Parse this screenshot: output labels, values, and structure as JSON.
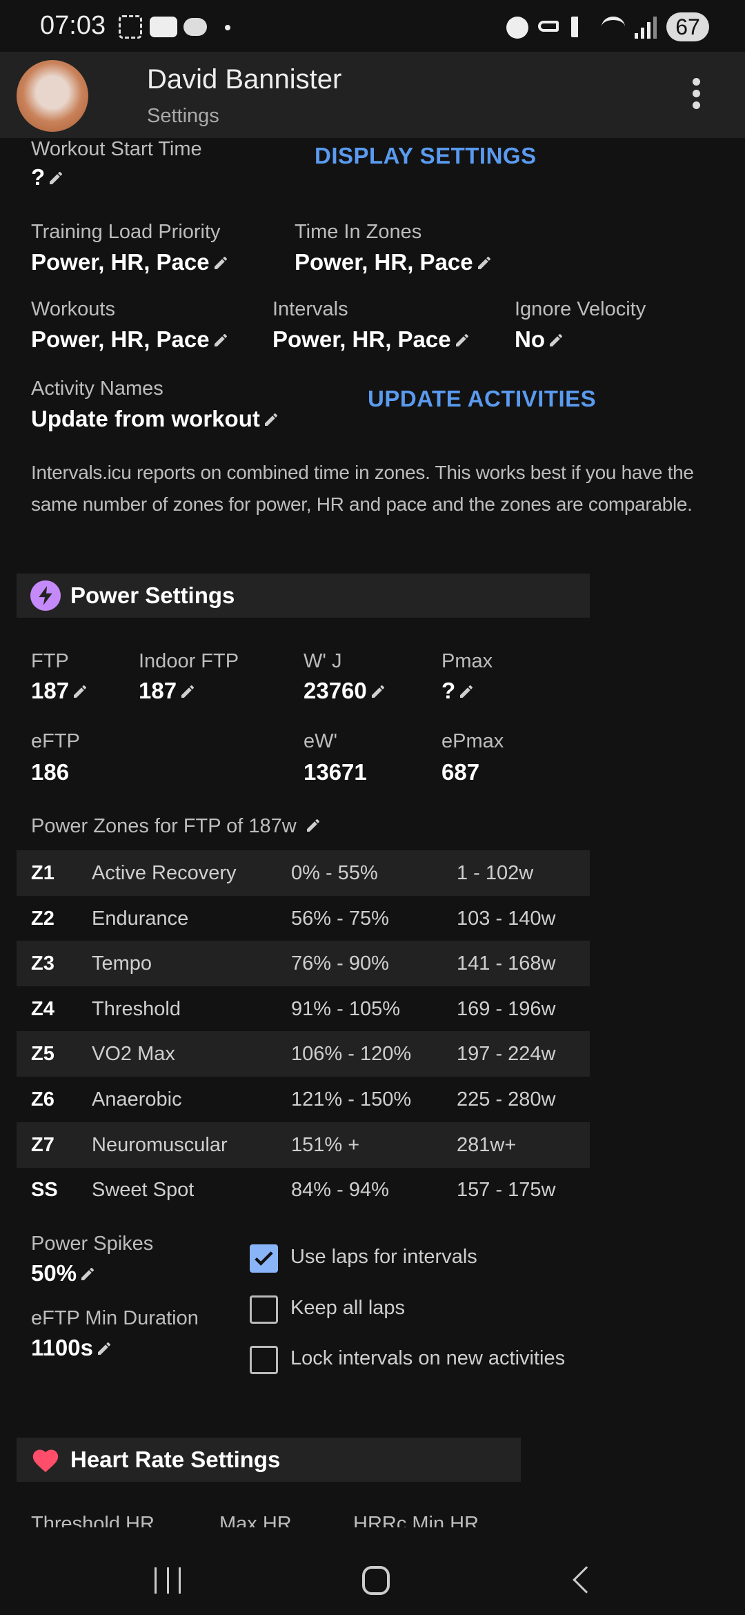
{
  "status_bar": {
    "time": "07:03",
    "battery": "67"
  },
  "header": {
    "name": "David Bannister",
    "subtitle": "Settings"
  },
  "general": {
    "workout_start_time": {
      "label": "Workout Start Time",
      "value": "?"
    },
    "display_settings": "DISPLAY SETTINGS",
    "training_load_priority": {
      "label": "Training Load Priority",
      "value": "Power, HR, Pace"
    },
    "time_in_zones": {
      "label": "Time In Zones",
      "value": "Power, HR, Pace"
    },
    "workouts": {
      "label": "Workouts",
      "value": "Power, HR, Pace"
    },
    "intervals": {
      "label": "Intervals",
      "value": "Power, HR, Pace"
    },
    "ignore_velocity": {
      "label": "Ignore Velocity",
      "value": "No"
    },
    "activity_names": {
      "label": "Activity Names",
      "value": "Update from workout"
    },
    "update_activities": "UPDATE ACTIVITIES",
    "note": "Intervals.icu reports on combined time in zones. This works best if you have the same number of zones for power, HR and pace and the zones are comparable."
  },
  "power": {
    "title": "Power Settings",
    "accent": "#c58af9",
    "fields": [
      {
        "label": "FTP",
        "value": "187"
      },
      {
        "label": "Indoor FTP",
        "value": "187"
      },
      {
        "label": "W' J",
        "value": "23760"
      },
      {
        "label": "Pmax",
        "value": "?"
      }
    ],
    "estimates": [
      {
        "label": "eFTP",
        "value": "186"
      },
      {
        "label": "eW'",
        "value": "13671"
      },
      {
        "label": "ePmax",
        "value": "687"
      }
    ],
    "zones_title": "Power Zones for FTP of 187w",
    "zones": [
      {
        "id": "Z1",
        "name": "Active Recovery",
        "pct": "0% - 55%",
        "watts": "1 - 102w"
      },
      {
        "id": "Z2",
        "name": "Endurance",
        "pct": "56% - 75%",
        "watts": "103 - 140w"
      },
      {
        "id": "Z3",
        "name": "Tempo",
        "pct": "76% - 90%",
        "watts": "141 - 168w"
      },
      {
        "id": "Z4",
        "name": "Threshold",
        "pct": "91% - 105%",
        "watts": "169 - 196w"
      },
      {
        "id": "Z5",
        "name": "VO2 Max",
        "pct": "106% - 120%",
        "watts": "197 - 224w"
      },
      {
        "id": "Z6",
        "name": "Anaerobic",
        "pct": "121% - 150%",
        "watts": "225 - 280w"
      },
      {
        "id": "Z7",
        "name": "Neuromuscular",
        "pct": "151% +",
        "watts": "281w+"
      },
      {
        "id": "SS",
        "name": "Sweet Spot",
        "pct": "84% - 94%",
        "watts": "157 - 175w"
      }
    ],
    "power_spikes": {
      "label": "Power Spikes",
      "value": "50%"
    },
    "eftp_min_duration": {
      "label": "eFTP Min Duration",
      "value": "1100s"
    },
    "checkboxes": [
      {
        "label": "Use laps for intervals",
        "checked": true
      },
      {
        "label": "Keep all laps",
        "checked": false
      },
      {
        "label": "Lock intervals on new activities",
        "checked": false
      }
    ]
  },
  "heart_rate": {
    "title": "Heart Rate Settings",
    "accent": "#ff4d6a",
    "labels": [
      "Threshold HR",
      "Max HR",
      "HRRc Min HR"
    ]
  }
}
